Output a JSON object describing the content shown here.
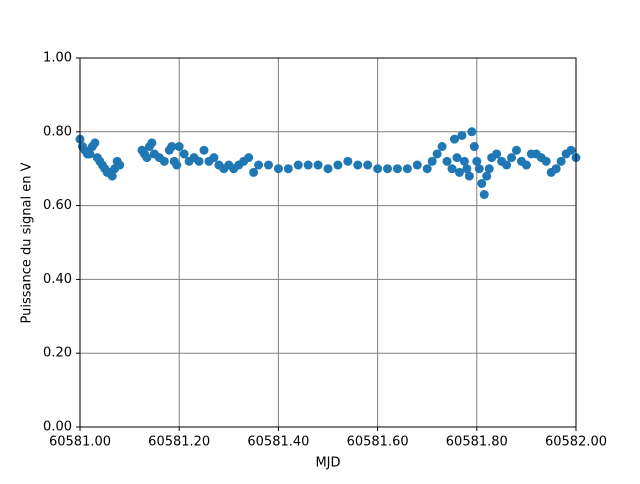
{
  "chart_data": {
    "type": "scatter",
    "xlabel": "MJD",
    "ylabel": "Puissance du signal en V",
    "xlim": [
      60581.0,
      60582.0
    ],
    "xticks": [
      {
        "value": 60581.0,
        "label": "60581.00"
      },
      {
        "value": 60581.2,
        "label": "60581.20"
      },
      {
        "value": 60581.4,
        "label": "60581.40"
      },
      {
        "value": 60581.6,
        "label": "60581.60"
      },
      {
        "value": 60581.8,
        "label": "60581.80"
      },
      {
        "value": 60582.0,
        "label": "60582.00"
      }
    ],
    "ylim": [
      0,
      1
    ],
    "yticks": [
      {
        "value": 0,
        "label": "0.00"
      },
      {
        "value": 0.2,
        "label": "0.20"
      },
      {
        "value": 0.4,
        "label": "0.40"
      },
      {
        "value": 0.6,
        "label": "0.60"
      },
      {
        "value": 0.8,
        "label": "0.80"
      },
      {
        "value": 1,
        "label": "1.00"
      }
    ],
    "grid": true,
    "series": [
      {
        "color": "#1f77b4",
        "x": [
          60581.0,
          60581.005,
          60581.01,
          60581.015,
          60581.02,
          60581.025,
          60581.03,
          60581.035,
          60581.04,
          60581.045,
          60581.05,
          60581.055,
          60581.06,
          60581.065,
          60581.07,
          60581.075,
          60581.08,
          60581.125,
          60581.13,
          60581.135,
          60581.14,
          60581.145,
          60581.15,
          60581.16,
          60581.17,
          60581.18,
          60581.185,
          60581.19,
          60581.195,
          60581.2,
          60581.21,
          60581.22,
          60581.23,
          60581.24,
          60581.25,
          60581.26,
          60581.27,
          60581.28,
          60581.29,
          60581.3,
          60581.31,
          60581.32,
          60581.33,
          60581.34,
          60581.35,
          60581.36,
          60581.38,
          60581.4,
          60581.42,
          60581.44,
          60581.46,
          60581.48,
          60581.5,
          60581.52,
          60581.54,
          60581.56,
          60581.58,
          60581.6,
          60581.62,
          60581.64,
          60581.66,
          60581.68,
          60581.7,
          60581.71,
          60581.72,
          60581.73,
          60581.74,
          60581.75,
          60581.755,
          60581.76,
          60581.765,
          60581.77,
          60581.775,
          60581.78,
          60581.785,
          60581.79,
          60581.795,
          60581.8,
          60581.805,
          60581.81,
          60581.815,
          60581.82,
          60581.825,
          60581.83,
          60581.84,
          60581.85,
          60581.86,
          60581.87,
          60581.88,
          60581.89,
          60581.9,
          60581.91,
          60581.92,
          60581.93,
          60581.94,
          60581.95,
          60581.96,
          60581.97,
          60581.98,
          60581.99,
          60582.0
        ],
        "values": [
          0.78,
          0.76,
          0.75,
          0.74,
          0.74,
          0.76,
          0.77,
          0.73,
          0.72,
          0.71,
          0.7,
          0.69,
          0.69,
          0.68,
          0.7,
          0.72,
          0.71,
          0.75,
          0.74,
          0.73,
          0.76,
          0.77,
          0.74,
          0.73,
          0.72,
          0.75,
          0.76,
          0.72,
          0.71,
          0.76,
          0.74,
          0.72,
          0.73,
          0.72,
          0.75,
          0.72,
          0.73,
          0.71,
          0.7,
          0.71,
          0.7,
          0.71,
          0.72,
          0.73,
          0.69,
          0.71,
          0.71,
          0.7,
          0.7,
          0.71,
          0.71,
          0.71,
          0.7,
          0.71,
          0.72,
          0.71,
          0.71,
          0.7,
          0.7,
          0.7,
          0.7,
          0.71,
          0.7,
          0.72,
          0.74,
          0.76,
          0.72,
          0.7,
          0.78,
          0.73,
          0.69,
          0.79,
          0.72,
          0.7,
          0.68,
          0.8,
          0.76,
          0.72,
          0.7,
          0.66,
          0.63,
          0.68,
          0.7,
          0.73,
          0.74,
          0.72,
          0.71,
          0.73,
          0.75,
          0.72,
          0.71,
          0.74,
          0.74,
          0.73,
          0.72,
          0.69,
          0.7,
          0.72,
          0.74,
          0.75,
          0.73
        ]
      }
    ]
  }
}
